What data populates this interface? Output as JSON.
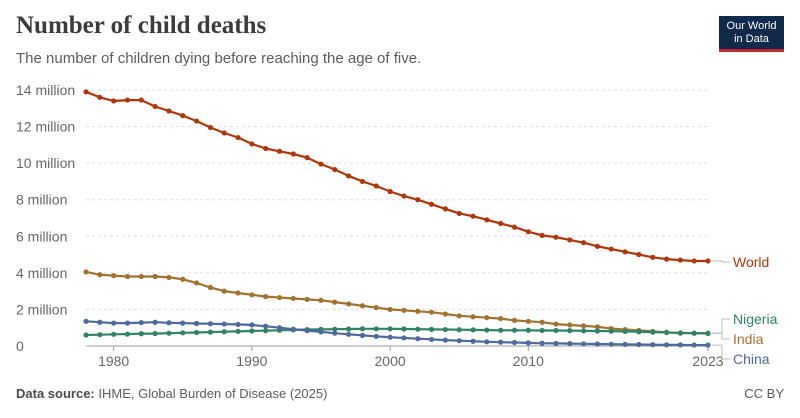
{
  "header": {
    "title": "Number of child deaths",
    "subtitle": "The number of children dying before reaching the age of five."
  },
  "logo": {
    "line1": "Our World",
    "line2": "in Data"
  },
  "footer": {
    "source_label": "Data source:",
    "source_text": "IHME, Global Burden of Disease (2025)",
    "license": "CC BY"
  },
  "chart_data": {
    "type": "line",
    "x": [
      1978,
      1979,
      1980,
      1981,
      1982,
      1983,
      1984,
      1985,
      1986,
      1987,
      1988,
      1989,
      1990,
      1991,
      1992,
      1993,
      1994,
      1995,
      1996,
      1997,
      1998,
      1999,
      2000,
      2001,
      2002,
      2003,
      2004,
      2005,
      2006,
      2007,
      2008,
      2009,
      2010,
      2011,
      2012,
      2013,
      2014,
      2015,
      2016,
      2017,
      2018,
      2019,
      2020,
      2021,
      2022,
      2023
    ],
    "x_ticks": [
      1980,
      1990,
      2000,
      2010,
      2023
    ],
    "y_ticks": [
      0,
      2000000,
      4000000,
      6000000,
      8000000,
      10000000,
      12000000,
      14000000
    ],
    "y_tick_labels": [
      "0",
      "2 million",
      "4 million",
      "6 million",
      "8 million",
      "10 million",
      "12 million",
      "14 million"
    ],
    "ylim": [
      0,
      14000000
    ],
    "xlim": [
      1978,
      2023
    ],
    "grid": "horizontal dashed",
    "series": [
      {
        "name": "World",
        "color": "#b13507",
        "values": [
          13900000,
          13600000,
          13400000,
          13450000,
          13450000,
          13100000,
          12850000,
          12600000,
          12300000,
          11950000,
          11650000,
          11400000,
          11050000,
          10800000,
          10650000,
          10500000,
          10300000,
          9950000,
          9650000,
          9300000,
          9000000,
          8750000,
          8450000,
          8200000,
          8000000,
          7750000,
          7500000,
          7250000,
          7100000,
          6900000,
          6700000,
          6500000,
          6250000,
          6050000,
          5950000,
          5800000,
          5650000,
          5450000,
          5300000,
          5150000,
          5000000,
          4850000,
          4750000,
          4700000,
          4650000,
          4650000
        ]
      },
      {
        "name": "India",
        "color": "#a2722b",
        "values": [
          4050000,
          3900000,
          3850000,
          3800000,
          3800000,
          3800000,
          3750000,
          3650000,
          3450000,
          3200000,
          3000000,
          2900000,
          2800000,
          2700000,
          2650000,
          2600000,
          2550000,
          2500000,
          2400000,
          2300000,
          2200000,
          2100000,
          2000000,
          1950000,
          1900000,
          1850000,
          1750000,
          1650000,
          1600000,
          1550000,
          1500000,
          1400000,
          1350000,
          1300000,
          1200000,
          1150000,
          1100000,
          1050000,
          950000,
          900000,
          850000,
          800000,
          750000,
          700000,
          700000,
          700000
        ]
      },
      {
        "name": "Nigeria",
        "color": "#2c8465",
        "values": [
          600000,
          620000,
          640000,
          650000,
          670000,
          680000,
          700000,
          720000,
          740000,
          760000,
          780000,
          800000,
          820000,
          840000,
          860000,
          880000,
          900000,
          910000,
          920000,
          930000,
          940000,
          940000,
          940000,
          930000,
          920000,
          910000,
          900000,
          890000,
          880000,
          870000,
          860000,
          860000,
          860000,
          850000,
          850000,
          840000,
          830000,
          820000,
          810000,
          800000,
          780000,
          760000,
          740000,
          720000,
          700000,
          690000
        ]
      },
      {
        "name": "China",
        "color": "#4c6a9c",
        "values": [
          1350000,
          1300000,
          1250000,
          1250000,
          1280000,
          1300000,
          1270000,
          1250000,
          1230000,
          1220000,
          1200000,
          1180000,
          1150000,
          1080000,
          1000000,
          920000,
          840000,
          770000,
          700000,
          640000,
          580000,
          530000,
          480000,
          440000,
          400000,
          360000,
          320000,
          290000,
          260000,
          230000,
          210000,
          190000,
          170000,
          150000,
          140000,
          130000,
          120000,
          110000,
          100000,
          90000,
          80000,
          70000,
          60000,
          60000,
          50000,
          50000
        ]
      }
    ]
  }
}
